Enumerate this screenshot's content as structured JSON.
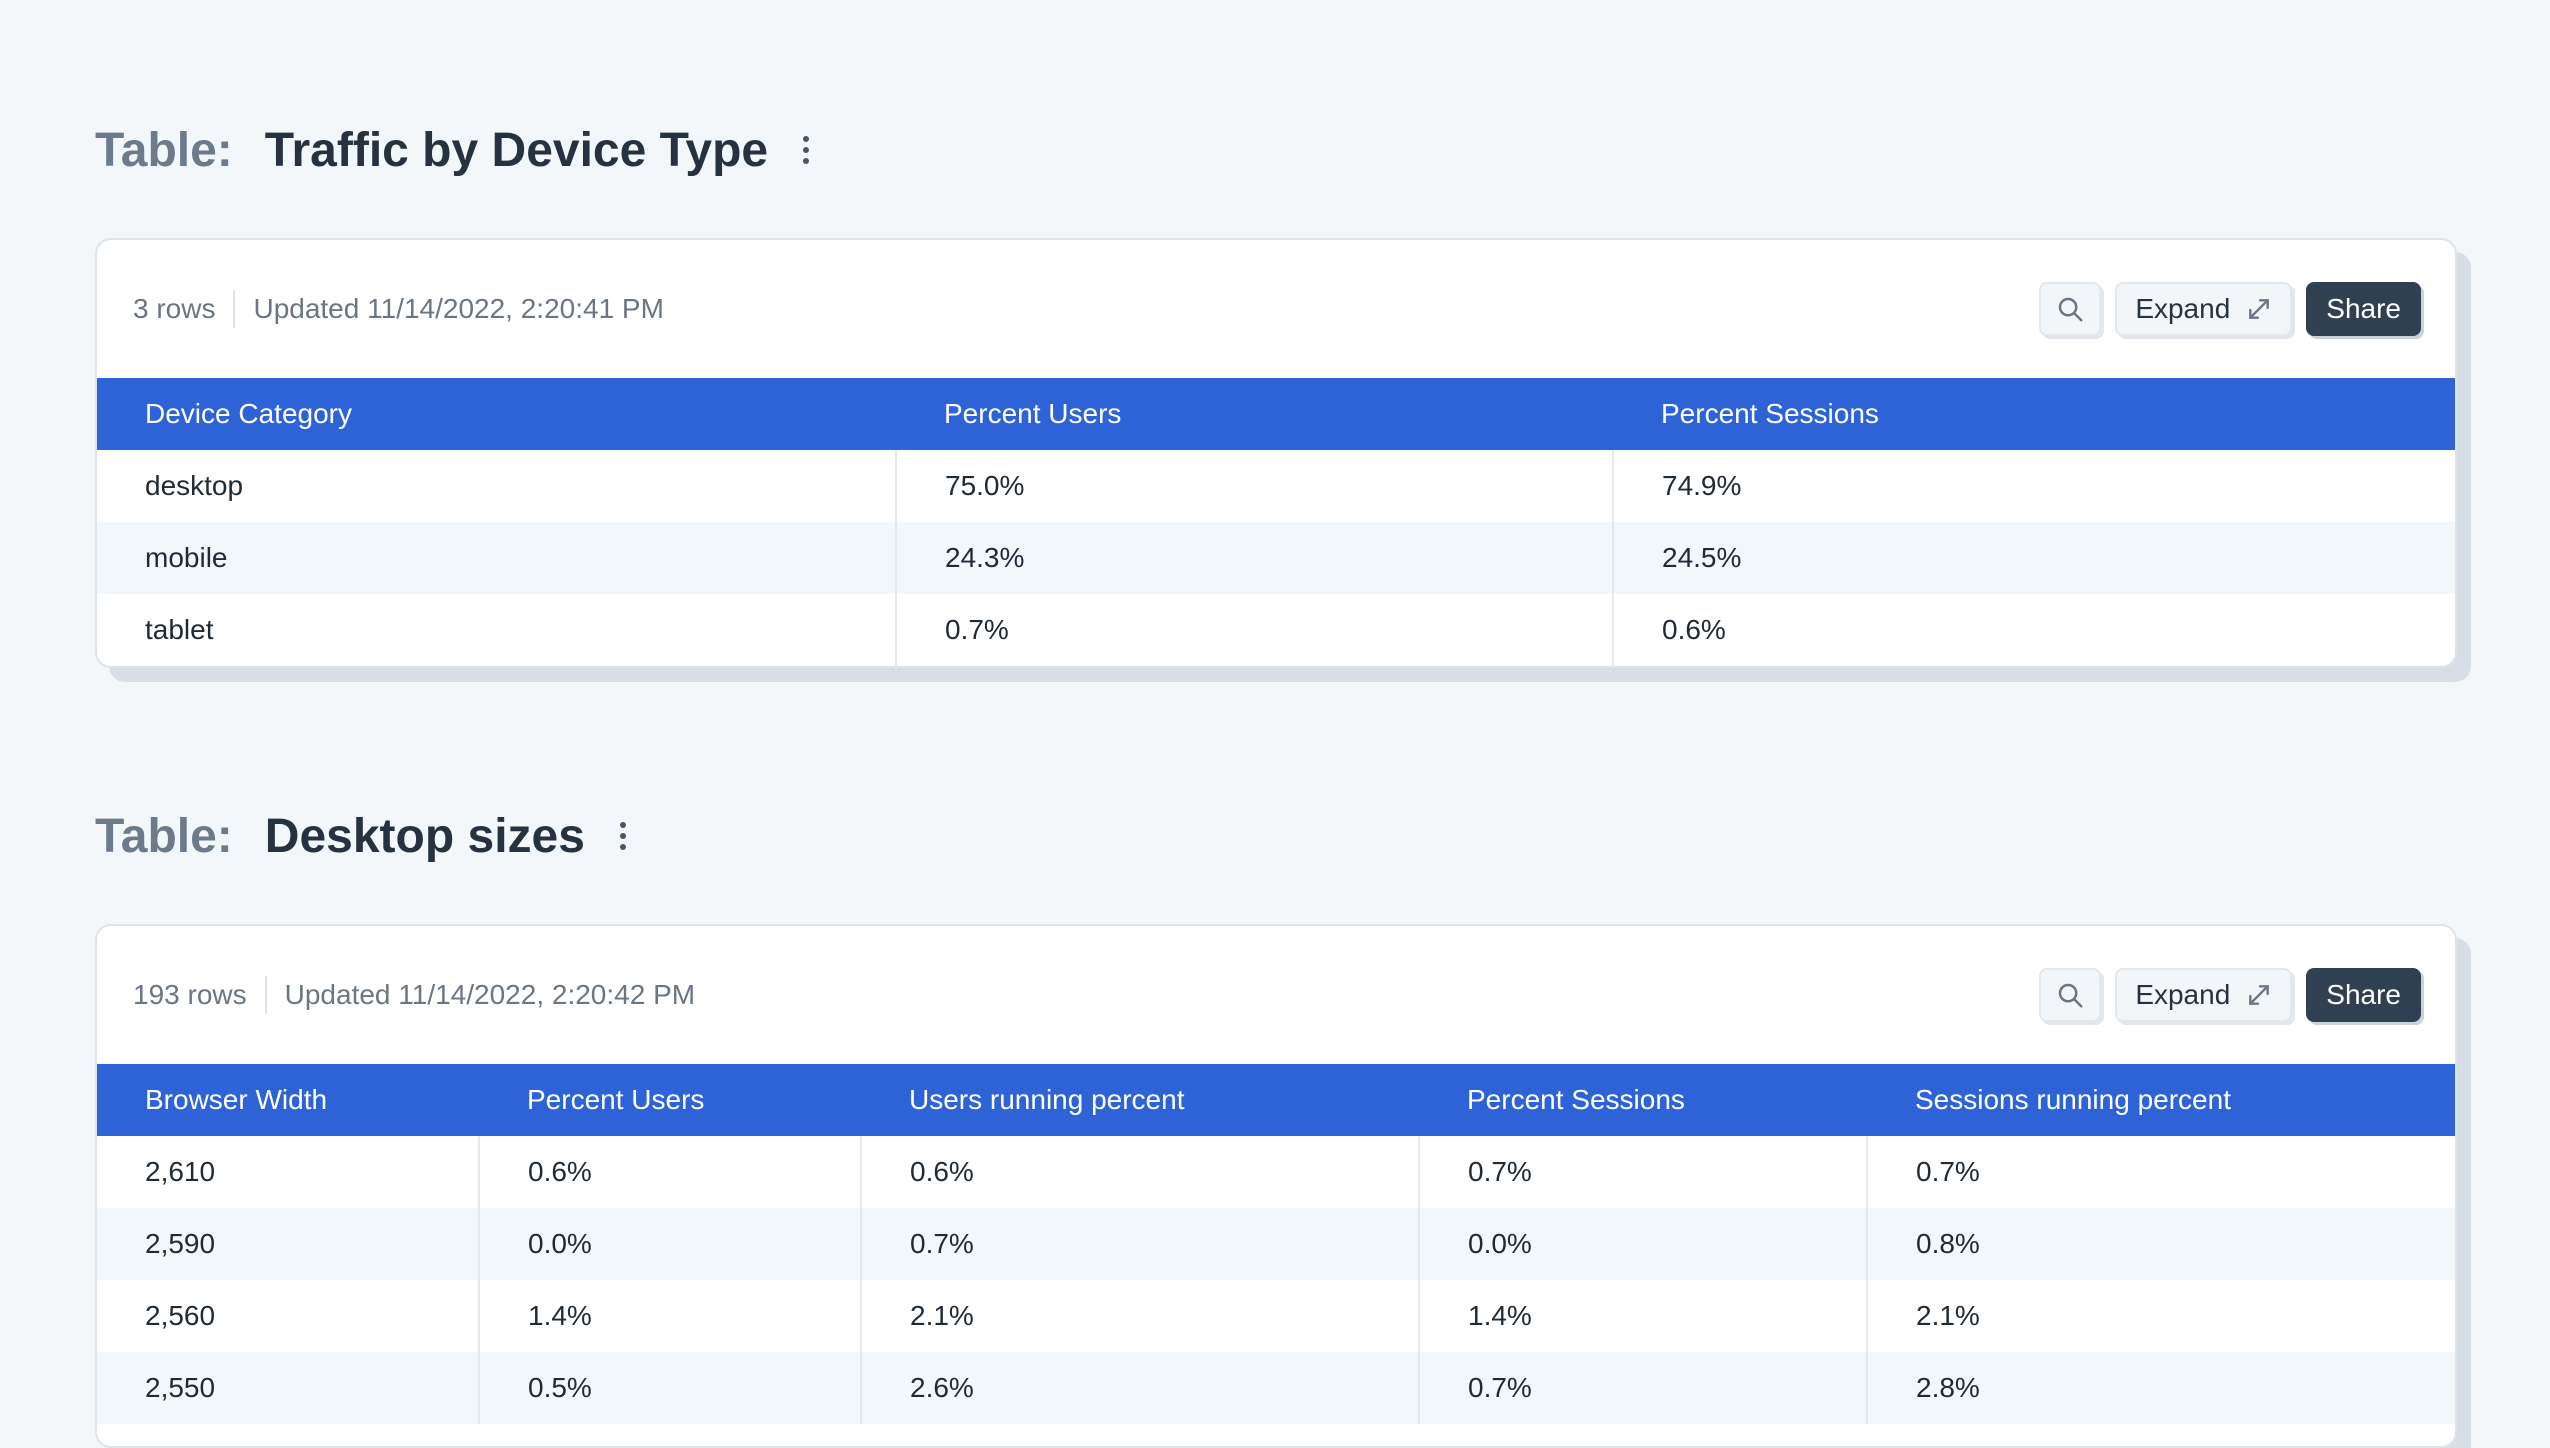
{
  "table1": {
    "prefix": "Table:",
    "title": "Traffic by Device Type",
    "row_count": "3 rows",
    "updated": "Updated 11/14/2022, 2:20:41 PM",
    "expand_label": "Expand",
    "share_label": "Share",
    "headers": [
      "Device Category",
      "Percent Users",
      "Percent Sessions"
    ],
    "rows": [
      [
        "desktop",
        "75.0%",
        "74.9%"
      ],
      [
        "mobile",
        "24.3%",
        "24.5%"
      ],
      [
        "tablet",
        "0.7%",
        "0.6%"
      ]
    ]
  },
  "table2": {
    "prefix": "Table:",
    "title": "Desktop sizes",
    "row_count": "193 rows",
    "updated": "Updated 11/14/2022, 2:20:42 PM",
    "expand_label": "Expand",
    "share_label": "Share",
    "headers": [
      "Browser Width",
      "Percent Users",
      "Users running percent",
      "Percent Sessions",
      "Sessions running percent"
    ],
    "rows": [
      [
        "2,610",
        "0.6%",
        "0.6%",
        "0.7%",
        "0.7%"
      ],
      [
        "2,590",
        "0.0%",
        "0.7%",
        "0.0%",
        "0.8%"
      ],
      [
        "2,560",
        "1.4%",
        "2.1%",
        "1.4%",
        "2.1%"
      ],
      [
        "2,550",
        "0.5%",
        "2.6%",
        "0.7%",
        "2.8%"
      ]
    ]
  },
  "icons": {
    "search": "search-icon",
    "expand": "expand-arrows-icon",
    "more": "kebab-menu-icon"
  },
  "colors": {
    "header_bg": "#2e63d8",
    "share_bg": "#2f4052",
    "page_bg": "#f3f7fa"
  }
}
